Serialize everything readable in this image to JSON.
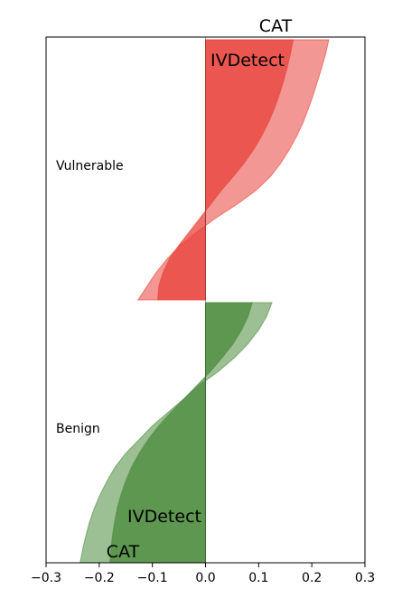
{
  "chart_data": {
    "type": "area",
    "xlim": [
      -0.3,
      0.3
    ],
    "x_ticks": [
      "−0.3",
      "−0.2",
      "−0.1",
      "0.0",
      "0.1",
      "0.2",
      "0.3"
    ],
    "x_tick_values": [
      -0.3,
      -0.2,
      -0.1,
      0.0,
      0.1,
      0.2,
      0.3
    ],
    "grid": false,
    "groups": [
      {
        "label": "Vulnerable",
        "color": "#e8423a",
        "series": [
          {
            "name": "CAT",
            "opacity": 0.55,
            "values": [
              0.232,
              0.226,
              0.219,
              0.211,
              0.203,
              0.194,
              0.184,
              0.172,
              0.158,
              0.142,
              0.122,
              0.095,
              0.06,
              0.02,
              -0.015,
              -0.048,
              -0.072,
              -0.093,
              -0.11,
              -0.127
            ]
          },
          {
            "name": "IVDetect",
            "opacity": 0.75,
            "values": [
              0.165,
              0.16,
              0.154,
              0.147,
              0.139,
              0.13,
              0.119,
              0.106,
              0.091,
              0.073,
              0.052,
              0.03,
              0.01,
              -0.01,
              -0.03,
              -0.05,
              -0.068,
              -0.08,
              -0.088,
              -0.09
            ]
          }
        ]
      },
      {
        "label": "Benign",
        "color": "#4a8a3a",
        "series": [
          {
            "name": "CAT",
            "opacity": 0.55,
            "values": [
              0.125,
              0.115,
              0.1,
              0.08,
              0.055,
              0.025,
              -0.01,
              -0.04,
              -0.07,
              -0.1,
              -0.125,
              -0.15,
              -0.17,
              -0.185,
              -0.198,
              -0.209,
              -0.218,
              -0.225,
              -0.231,
              -0.236
            ]
          },
          {
            "name": "IVDetect",
            "opacity": 0.75,
            "values": [
              0.088,
              0.08,
              0.068,
              0.052,
              0.032,
              0.01,
              -0.015,
              -0.04,
              -0.065,
              -0.088,
              -0.108,
              -0.125,
              -0.139,
              -0.15,
              -0.159,
              -0.166,
              -0.171,
              -0.175,
              -0.178,
              -0.18
            ]
          }
        ]
      }
    ],
    "annotations": [
      {
        "text": "CAT",
        "group": 0,
        "series": "CAT"
      },
      {
        "text": "IVDetect",
        "group": 0,
        "series": "IVDetect"
      },
      {
        "text": "IVDetect",
        "group": 1,
        "series": "IVDetect"
      },
      {
        "text": "CAT",
        "group": 1,
        "series": "CAT"
      }
    ]
  }
}
